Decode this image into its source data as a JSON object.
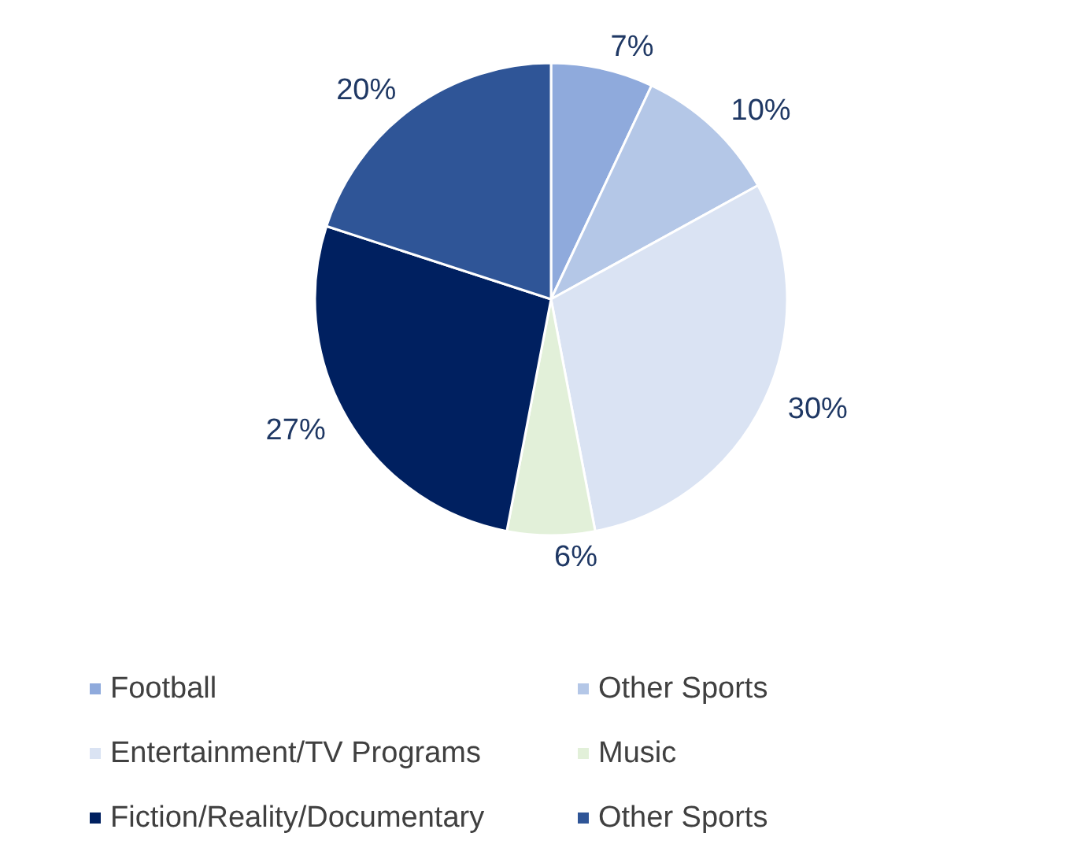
{
  "chart_data": {
    "type": "pie",
    "categories": [
      "Football",
      "Other Sports",
      "Entertainment/TV Programs",
      "Music",
      "Fiction/Reality/Documentary",
      "Other Sports"
    ],
    "values": [
      7,
      10,
      30,
      6,
      27,
      20
    ],
    "colors": [
      "#8faadc",
      "#b4c7e7",
      "#dae3f3",
      "#e2f0d9",
      "#002060",
      "#2f5597"
    ],
    "value_labels": [
      "7%",
      "10%",
      "30%",
      "6%",
      "27%",
      "20%"
    ],
    "legend": "bottom"
  }
}
